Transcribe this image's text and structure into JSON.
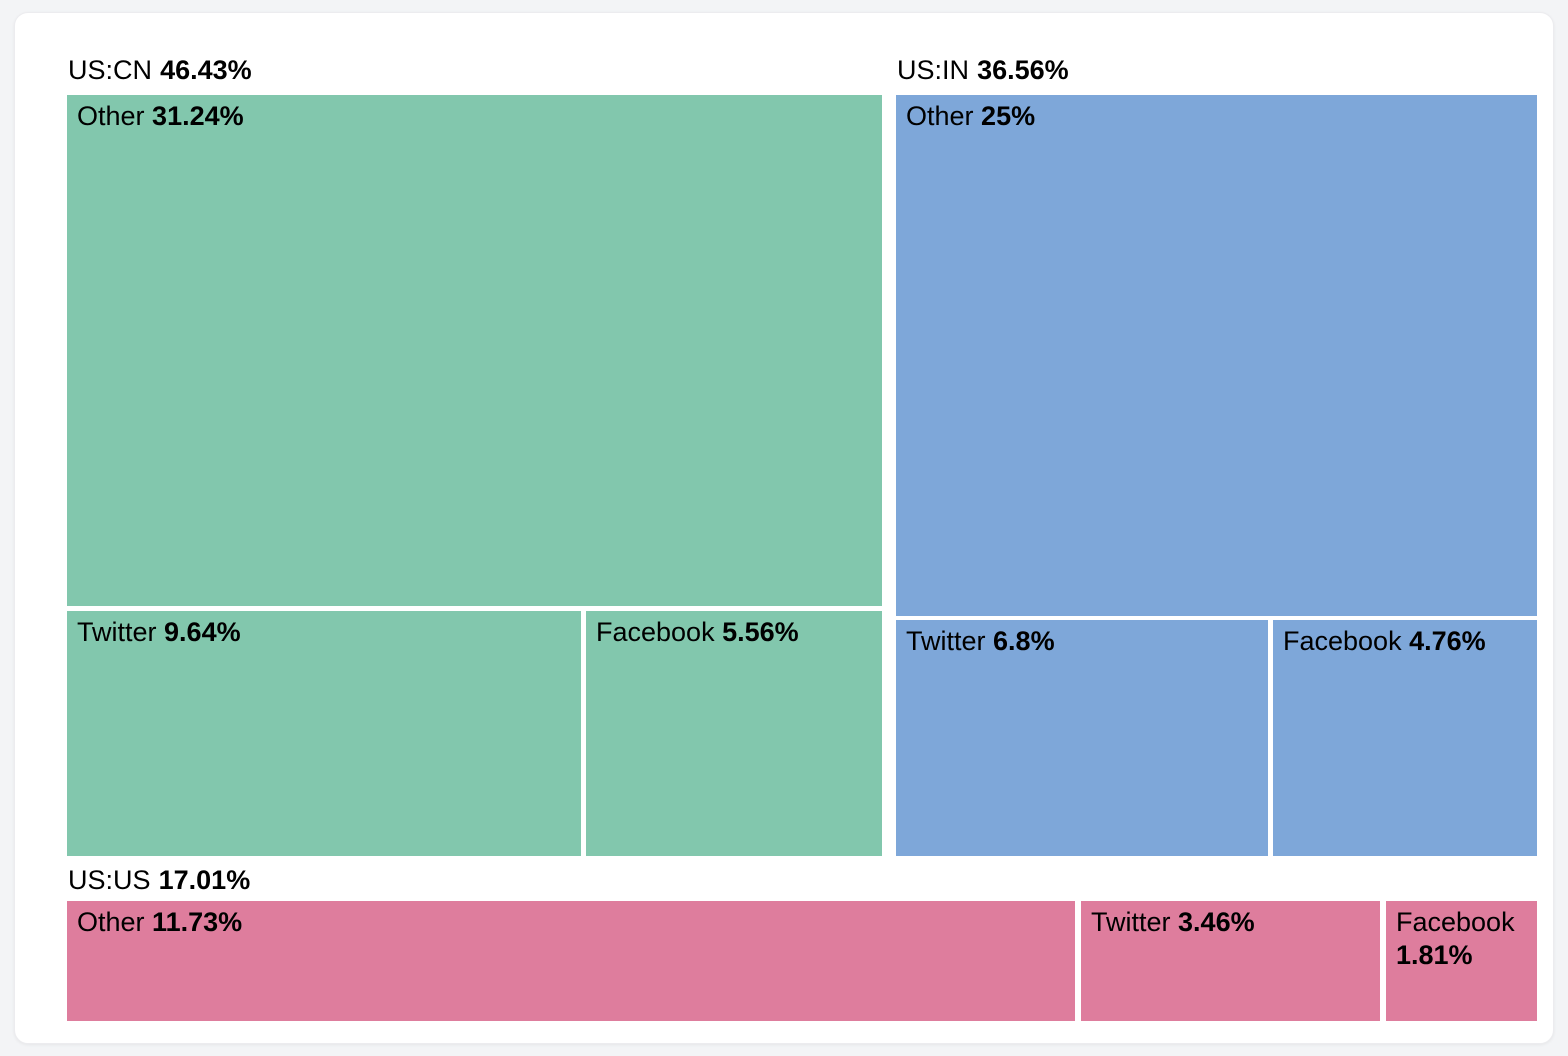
{
  "colors": {
    "page_background": "#f3f4f6",
    "card_background": "#ffffff",
    "text": "#000000",
    "group_us_cn": "#82C7AD",
    "group_us_in": "#7EA7D9",
    "group_us_us": "#DE7D9D"
  },
  "chart_data": {
    "type": "treemap",
    "title": "",
    "value_format": "percent",
    "legend": false,
    "layout": "squarified, group headers above tiles, bold percentage values",
    "groups": [
      {
        "label": "US:CN",
        "value": 46.43,
        "value_label": "46.43%",
        "color": "#82C7AD",
        "children": [
          {
            "label": "Other",
            "value": 31.24,
            "value_label": "31.24%"
          },
          {
            "label": "Twitter",
            "value": 9.64,
            "value_label": "9.64%"
          },
          {
            "label": "Facebook",
            "value": 5.56,
            "value_label": "5.56%"
          }
        ]
      },
      {
        "label": "US:IN",
        "value": 36.56,
        "value_label": "36.56%",
        "color": "#7EA7D9",
        "children": [
          {
            "label": "Other",
            "value": 25,
            "value_label": "25%"
          },
          {
            "label": "Twitter",
            "value": 6.8,
            "value_label": "6.8%"
          },
          {
            "label": "Facebook",
            "value": 4.76,
            "value_label": "4.76%"
          }
        ]
      },
      {
        "label": "US:US",
        "value": 17.01,
        "value_label": "17.01%",
        "color": "#DE7D9D",
        "children": [
          {
            "label": "Other",
            "value": 11.73,
            "value_label": "11.73%"
          },
          {
            "label": "Twitter",
            "value": 3.46,
            "value_label": "3.46%"
          },
          {
            "label": "Facebook",
            "value": 1.81,
            "value_label": "1.81%"
          }
        ]
      }
    ]
  }
}
